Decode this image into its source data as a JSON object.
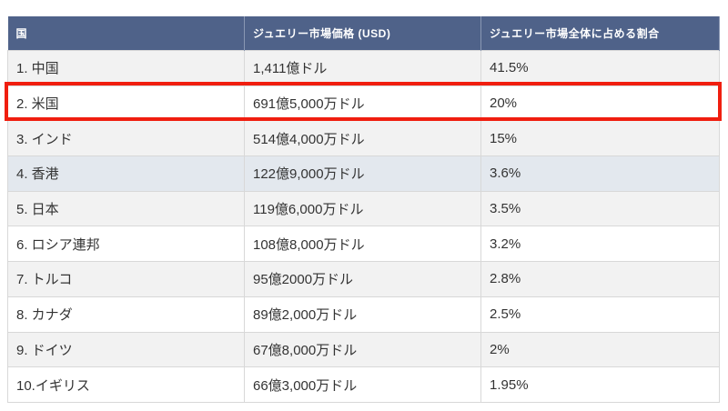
{
  "table": {
    "headers": [
      "国",
      "ジュエリー市場価格 (USD)",
      "ジュエリー市場全体に占める割合"
    ],
    "rows": [
      [
        "1. 中国",
        "1,411億ドル",
        "41.5%"
      ],
      [
        "2. 米国",
        "691億5,000万ドル",
        "20%"
      ],
      [
        "3. インド",
        "514億4,000万ドル",
        "15%"
      ],
      [
        "4. 香港",
        "122億9,000万ドル",
        "3.6%"
      ],
      [
        "5. 日本",
        "119億6,000万ドル",
        "3.5%"
      ],
      [
        "6. ロシア連邦",
        "108億8,000万ドル",
        "3.2%"
      ],
      [
        "7. トルコ",
        "95億2000万ドル",
        "2.8%"
      ],
      [
        "8. カナダ",
        "89億2,000万ドル",
        "2.5%"
      ],
      [
        "9. ドイツ",
        "67億8,000万ドル",
        "2%"
      ],
      [
        "10.イギリス",
        "66億3,000万ドル",
        "1.95%"
      ]
    ]
  }
}
